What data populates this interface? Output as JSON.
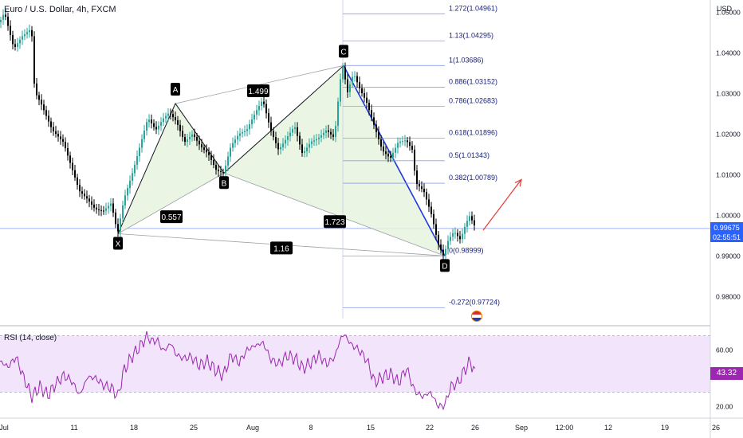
{
  "chart_title": "Euro / U.S. Dollar, 4h, FXCM",
  "currency_label": "USD",
  "colors": {
    "up": "#26a69a",
    "down": "#000000",
    "fill": "#e6f3de",
    "pattern_line": "#131722",
    "leg_cd": "#1e3adb",
    "fib": "#8ca1e8",
    "rsi_line": "#9c27b0",
    "rsi_band": "#f1e4fb",
    "arrow": "#e53935",
    "current_price": "#2962ff"
  },
  "current_price": {
    "value": "0.99675",
    "countdown": "02:55:51"
  },
  "chart_data": {
    "type": "candlestick",
    "y_ticks": [
      "1.05000",
      "1.04000",
      "1.03000",
      "1.02000",
      "1.01000",
      "1.00000",
      "0.99000",
      "0.98000"
    ],
    "x_ticks": [
      "Jul",
      "11",
      "18",
      "25",
      "Aug",
      "8",
      "15",
      "22",
      "26",
      "Sep",
      "12:00",
      "12",
      "19",
      "26"
    ],
    "ylim": [
      0.973,
      1.053
    ],
    "price_path": [
      [
        0,
        1.0475
      ],
      [
        6,
        1.05
      ],
      [
        18,
        1.041
      ],
      [
        28,
        1.044
      ],
      [
        40,
        1.046
      ],
      [
        44,
        1.0305
      ],
      [
        52,
        1.0275
      ],
      [
        66,
        1.021
      ],
      [
        80,
        1.018
      ],
      [
        90,
        1.012
      ],
      [
        100,
        1.006
      ],
      [
        110,
        1.004
      ],
      [
        120,
        1.0015
      ],
      [
        130,
        1.001
      ],
      [
        140,
        1.003
      ],
      [
        148,
        0.9955
      ],
      [
        156,
        1.004
      ],
      [
        166,
        1.01
      ],
      [
        176,
        1.017
      ],
      [
        186,
        1.024
      ],
      [
        196,
        1.021
      ],
      [
        206,
        1.024
      ],
      [
        213,
        1.0253
      ],
      [
        222,
        1.023
      ],
      [
        232,
        1.018
      ],
      [
        242,
        1.02
      ],
      [
        252,
        1.017
      ],
      [
        262,
        1.015
      ],
      [
        272,
        1.011
      ],
      [
        281,
        1.0104
      ],
      [
        290,
        1.017
      ],
      [
        300,
        1.02
      ],
      [
        310,
        1.021
      ],
      [
        320,
        1.025
      ],
      [
        330,
        1.0285
      ],
      [
        340,
        1.021
      ],
      [
        350,
        1.016
      ],
      [
        360,
        1.019
      ],
      [
        370,
        1.022
      ],
      [
        380,
        1.015
      ],
      [
        390,
        1.018
      ],
      [
        400,
        1.019
      ],
      [
        410,
        1.021
      ],
      [
        420,
        1.019
      ],
      [
        427,
        1.033
      ],
      [
        431,
        1.0369
      ],
      [
        436,
        1.03
      ],
      [
        444,
        1.035
      ],
      [
        452,
        1.031
      ],
      [
        460,
        1.028
      ],
      [
        470,
        1.022
      ],
      [
        480,
        1.016
      ],
      [
        490,
        1.014
      ],
      [
        500,
        1.018
      ],
      [
        510,
        1.0185
      ],
      [
        518,
        1.016
      ],
      [
        522,
        1.008
      ],
      [
        532,
        1.006
      ],
      [
        542,
        1.0
      ],
      [
        550,
        0.993
      ],
      [
        557,
        0.99
      ],
      [
        563,
        0.994
      ],
      [
        570,
        0.996
      ],
      [
        578,
        0.994
      ],
      [
        585,
        0.998
      ],
      [
        590,
        1.0
      ],
      [
        595,
        0.9975
      ]
    ],
    "harmonic_pattern": {
      "points": [
        {
          "label": "X",
          "x": 148,
          "price": 0.99545
        },
        {
          "label": "A",
          "x": 220,
          "price": 1.0275
        },
        {
          "label": "B",
          "x": 281,
          "price": 1.0104
        },
        {
          "label": "C",
          "x": 431,
          "price": 1.03686
        },
        {
          "label": "D",
          "x": 558,
          "price": 0.98999
        }
      ],
      "ratios": [
        {
          "value": "0.557",
          "x": 215,
          "price": 0.99965
        },
        {
          "value": "1.499",
          "x": 324,
          "price": 1.03065
        },
        {
          "value": "1.723",
          "x": 420,
          "price": 0.99845
        },
        {
          "value": "1.16",
          "x": 353,
          "price": 0.99195
        }
      ]
    },
    "fibonacci_levels": [
      {
        "ratio": "1.272",
        "value": "1.04961",
        "price": 1.04961
      },
      {
        "ratio": "1.13",
        "value": "1.04295",
        "price": 1.04295
      },
      {
        "ratio": "1",
        "value": "1.03686",
        "price": 1.03686
      },
      {
        "ratio": "0.886",
        "value": "1.03152",
        "price": 1.03152
      },
      {
        "ratio": "0.786",
        "value": "1.02683",
        "price": 1.02683
      },
      {
        "ratio": "0.618",
        "value": "1.01896",
        "price": 1.01896
      },
      {
        "ratio": "0.5",
        "value": "1.01343",
        "price": 1.01343
      },
      {
        "ratio": "0.382",
        "value": "1.00789",
        "price": 1.00789
      },
      {
        "ratio": "0",
        "value": "0.98999",
        "price": 0.98999
      },
      {
        "ratio": "-0.272",
        "value": "0.97724",
        "price": 0.97724
      }
    ],
    "projection_arrow": {
      "from_x": 606,
      "from_price": 0.9963,
      "to_x": 654,
      "to_price": 1.0088
    }
  },
  "rsi": {
    "title": "RSI (14, close)",
    "current": "43.32",
    "upper": 70,
    "lower": 30,
    "y_ticks": [
      "60.00",
      "20.00"
    ],
    "ylim": [
      13.5,
      76.5
    ],
    "path": [
      [
        0,
        52
      ],
      [
        10,
        48
      ],
      [
        20,
        55
      ],
      [
        30,
        40
      ],
      [
        40,
        27
      ],
      [
        50,
        34
      ],
      [
        60,
        28
      ],
      [
        70,
        36
      ],
      [
        80,
        42
      ],
      [
        90,
        38
      ],
      [
        100,
        28
      ],
      [
        110,
        41
      ],
      [
        120,
        40
      ],
      [
        130,
        35
      ],
      [
        140,
        33
      ],
      [
        148,
        27
      ],
      [
        155,
        45
      ],
      [
        165,
        55
      ],
      [
        175,
        62
      ],
      [
        185,
        70
      ],
      [
        190,
        66
      ],
      [
        197,
        67
      ],
      [
        205,
        59
      ],
      [
        215,
        65
      ],
      [
        220,
        57
      ],
      [
        230,
        54
      ],
      [
        240,
        55
      ],
      [
        250,
        49
      ],
      [
        260,
        52
      ],
      [
        270,
        46
      ],
      [
        280,
        42
      ],
      [
        290,
        56
      ],
      [
        300,
        51
      ],
      [
        310,
        60
      ],
      [
        320,
        63
      ],
      [
        330,
        65
      ],
      [
        340,
        53
      ],
      [
        350,
        50
      ],
      [
        360,
        56
      ],
      [
        370,
        54
      ],
      [
        380,
        47
      ],
      [
        390,
        51
      ],
      [
        400,
        56
      ],
      [
        410,
        50
      ],
      [
        420,
        55
      ],
      [
        427,
        68
      ],
      [
        432,
        71
      ],
      [
        440,
        64
      ],
      [
        450,
        60
      ],
      [
        460,
        53
      ],
      [
        470,
        37
      ],
      [
        480,
        41
      ],
      [
        490,
        43
      ],
      [
        500,
        37
      ],
      [
        510,
        47
      ],
      [
        520,
        31
      ],
      [
        530,
        27
      ],
      [
        540,
        30
      ],
      [
        550,
        20
      ],
      [
        558,
        21
      ],
      [
        565,
        34
      ],
      [
        575,
        37
      ],
      [
        582,
        45
      ],
      [
        590,
        52
      ],
      [
        596,
        43
      ]
    ]
  }
}
